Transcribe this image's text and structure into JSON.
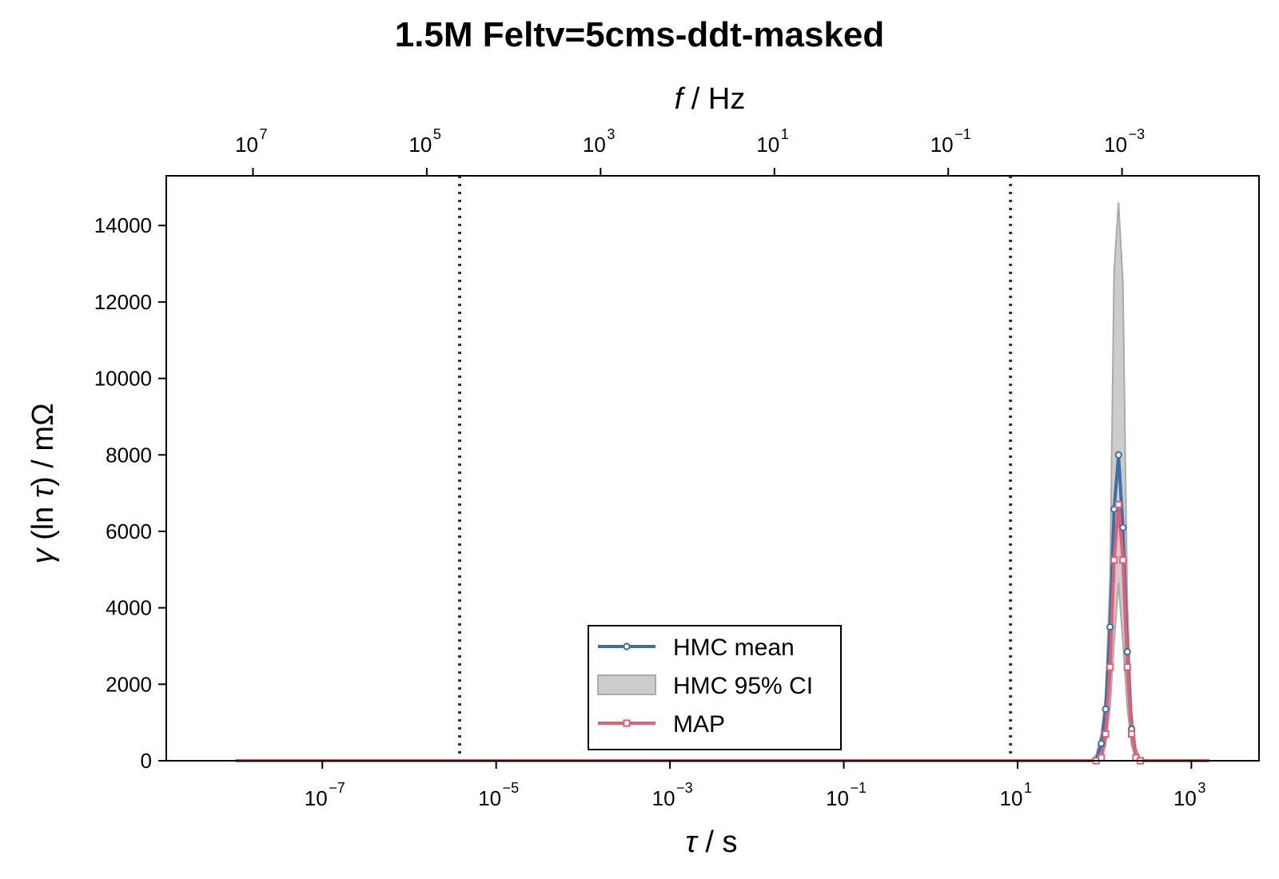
{
  "chart_data": {
    "type": "line",
    "title": "1.5M Feltv=5cms-ddt-masked",
    "xlabel_symbol": "τ",
    "xlabel_unit": " / s",
    "ylabel_prefix": "γ",
    "ylabel_mid": " (ln ",
    "ylabel_sym": "τ",
    "ylabel_suffix": ") / mΩ",
    "top_xlabel_symbol": "f",
    "top_xlabel_unit": " / Hz",
    "x_scale": "log",
    "y_scale": "linear",
    "xlim": [
      1.6e-09,
      6000.0
    ],
    "ylim": [
      0,
      15300
    ],
    "yticks": [
      0,
      2000,
      4000,
      6000,
      8000,
      10000,
      12000,
      14000
    ],
    "xticks": [
      {
        "value": 1e-07,
        "base": "10",
        "exp": "−7"
      },
      {
        "value": 1e-05,
        "base": "10",
        "exp": "−5"
      },
      {
        "value": 0.001,
        "base": "10",
        "exp": "−3"
      },
      {
        "value": 0.1,
        "base": "10",
        "exp": "−1"
      },
      {
        "value": 10.0,
        "base": "10",
        "exp": "1"
      },
      {
        "value": 1000.0,
        "base": "10",
        "exp": "3"
      }
    ],
    "top_xticks": [
      {
        "freq": 10000000.0,
        "base": "10",
        "exp": "7"
      },
      {
        "freq": 100000.0,
        "base": "10",
        "exp": "5"
      },
      {
        "freq": 1000.0,
        "base": "10",
        "exp": "3"
      },
      {
        "freq": 10.0,
        "base": "10",
        "exp": "1"
      },
      {
        "freq": 0.1,
        "base": "10",
        "exp": "−1"
      },
      {
        "freq": 0.001,
        "base": "10",
        "exp": "−3"
      }
    ],
    "vlines": [
      3.8e-06,
      8.3
    ],
    "x_range_series": [
      1e-08,
      1600.0
    ],
    "series": [
      {
        "name": "HMC mean",
        "color": "#3d6fa3",
        "marker": "circle",
        "x": [
          80,
          92,
          103,
          116,
          129,
          145,
          163,
          183,
          205,
          230,
          258
        ],
        "y": [
          0,
          450,
          1350,
          3500,
          6580,
          8000,
          6100,
          2850,
          830,
          80,
          0
        ]
      },
      {
        "name": "MAP",
        "color": "#e45e76",
        "marker": "square",
        "x": [
          80,
          92,
          103,
          116,
          129,
          145,
          163,
          183,
          205,
          230,
          258
        ],
        "y": [
          0,
          80,
          700,
          2450,
          5250,
          6700,
          5250,
          2450,
          700,
          80,
          0
        ]
      }
    ],
    "ci": {
      "name": "HMC 95% CI",
      "color": "#cccccc",
      "x": [
        70,
        80,
        92,
        103,
        116,
        129,
        145,
        163,
        183,
        205,
        230,
        258,
        285
      ],
      "lower": [
        0,
        0,
        100,
        400,
        1400,
        3100,
        4650,
        3100,
        1400,
        400,
        80,
        0,
        0
      ],
      "upper": [
        0,
        150,
        700,
        1700,
        4800,
        12800,
        14600,
        12500,
        4200,
        1300,
        350,
        50,
        0
      ]
    },
    "legend": {
      "placement": "lower-center",
      "entries": [
        "HMC mean",
        "HMC 95% CI",
        "MAP"
      ]
    },
    "grid": false
  }
}
